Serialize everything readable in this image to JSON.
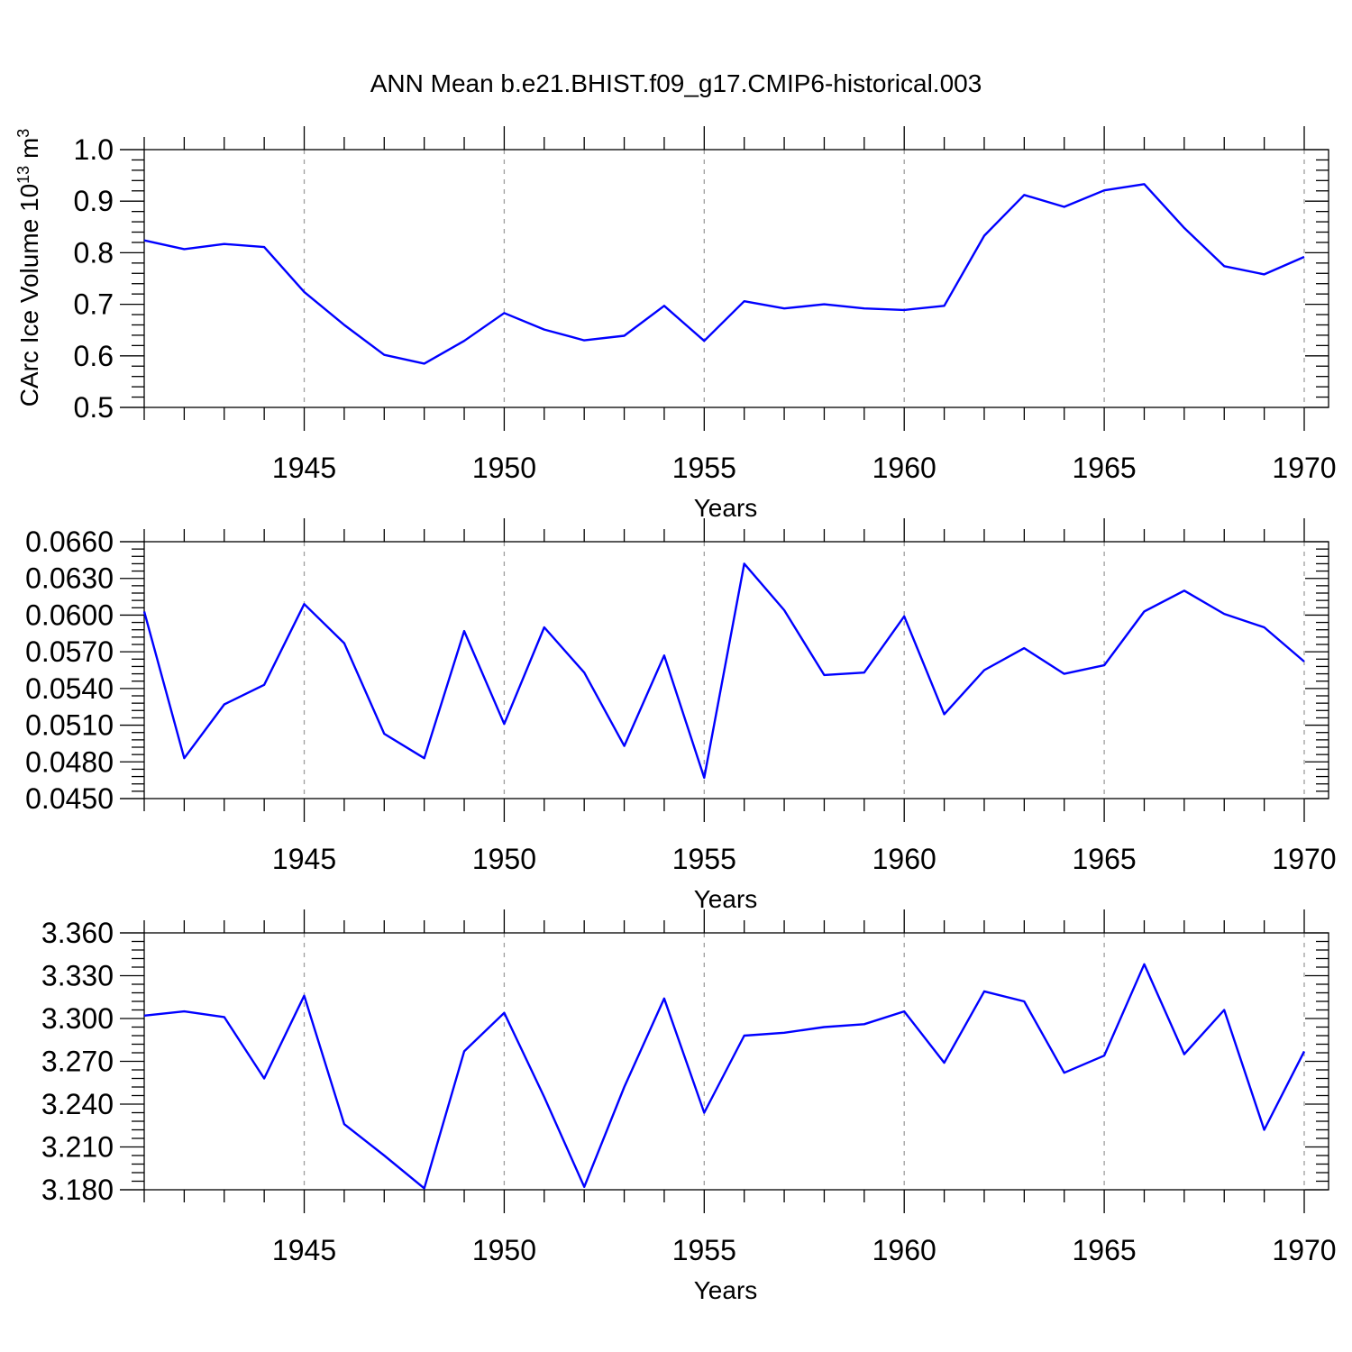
{
  "figure": {
    "title": "ANN Mean b.e21.BHIST.f09_g17.CMIP6-historical.003"
  },
  "style": {
    "line_color": "#0000ff",
    "axis_color": "#000000",
    "grid_color": "#9e9e9e",
    "background": "#ffffff"
  },
  "chart_data": [
    {
      "type": "line",
      "title": "ANN Mean b.e21.BHIST.f09_g17.CMIP6-historical.003",
      "xlabel": "Years",
      "ylabel": "CArc Ice Volume 10",
      "ylabel_sup1": "13",
      "ylabel_mid": " m",
      "ylabel_sup2": "3",
      "xlim": [
        1941,
        1970
      ],
      "ylim": [
        0.5,
        1.0
      ],
      "xticks": [
        1945,
        1950,
        1955,
        1960,
        1965,
        1970
      ],
      "yticks": [
        "0.5",
        "0.6",
        "0.7",
        "0.8",
        "0.9",
        "1.0"
      ],
      "grid": "vertical dashed at major x ticks",
      "series": [
        {
          "x": [
            1941,
            1942,
            1943,
            1944,
            1945,
            1946,
            1947,
            1948,
            1949,
            1950,
            1951,
            1952,
            1953,
            1954,
            1955,
            1956,
            1957,
            1958,
            1959,
            1960,
            1961,
            1962,
            1963,
            1964,
            1965,
            1966,
            1967,
            1968,
            1969,
            1970
          ],
          "values": [
            0.824,
            0.807,
            0.817,
            0.811,
            0.724,
            0.66,
            0.602,
            0.585,
            0.629,
            0.683,
            0.651,
            0.63,
            0.639,
            0.697,
            0.629,
            0.706,
            0.692,
            0.7,
            0.692,
            0.689,
            0.697,
            0.833,
            0.912,
            0.889,
            0.921,
            0.933,
            0.848,
            0.774,
            0.758,
            0.792
          ]
        }
      ]
    },
    {
      "type": "line",
      "xlabel": "Years",
      "ylabel": "",
      "xlim": [
        1941,
        1970
      ],
      "ylim": [
        0.045,
        0.066
      ],
      "xticks": [
        1945,
        1950,
        1955,
        1960,
        1965,
        1970
      ],
      "yticks": [
        "0.0450",
        "0.0480",
        "0.0510",
        "0.0540",
        "0.0570",
        "0.0600",
        "0.0630",
        "0.0660"
      ],
      "grid": "vertical dashed at major x ticks",
      "series": [
        {
          "x": [
            1941,
            1942,
            1943,
            1944,
            1945,
            1946,
            1947,
            1948,
            1949,
            1950,
            1951,
            1952,
            1953,
            1954,
            1955,
            1956,
            1957,
            1958,
            1959,
            1960,
            1961,
            1962,
            1963,
            1964,
            1965,
            1966,
            1967,
            1968,
            1969,
            1970
          ],
          "values": [
            0.0603,
            0.0483,
            0.0527,
            0.0543,
            0.0609,
            0.0577,
            0.0503,
            0.0483,
            0.0587,
            0.0511,
            0.059,
            0.0553,
            0.0493,
            0.0567,
            0.0467,
            0.0642,
            0.0604,
            0.0551,
            0.0553,
            0.0599,
            0.0519,
            0.0555,
            0.0573,
            0.0552,
            0.0559,
            0.0603,
            0.062,
            0.0601,
            0.059,
            0.0562
          ]
        }
      ]
    },
    {
      "type": "line",
      "xlabel": "Years",
      "ylabel": "",
      "xlim": [
        1941,
        1970
      ],
      "ylim": [
        3.18,
        3.36
      ],
      "xticks": [
        1945,
        1950,
        1955,
        1960,
        1965,
        1970
      ],
      "yticks": [
        "3.180",
        "3.210",
        "3.240",
        "3.270",
        "3.300",
        "3.330",
        "3.360"
      ],
      "grid": "vertical dashed at major x ticks",
      "series": [
        {
          "x": [
            1941,
            1942,
            1943,
            1944,
            1945,
            1946,
            1947,
            1948,
            1949,
            1950,
            1951,
            1952,
            1953,
            1954,
            1955,
            1956,
            1957,
            1958,
            1959,
            1960,
            1961,
            1962,
            1963,
            1964,
            1965,
            1966,
            1967,
            1968,
            1969,
            1970
          ],
          "values": [
            3.302,
            3.305,
            3.301,
            3.258,
            3.316,
            3.226,
            3.204,
            3.181,
            3.277,
            3.304,
            3.245,
            3.182,
            3.252,
            3.314,
            3.234,
            3.288,
            3.29,
            3.294,
            3.296,
            3.305,
            3.269,
            3.319,
            3.312,
            3.262,
            3.274,
            3.338,
            3.275,
            3.306,
            3.222,
            3.277
          ]
        }
      ]
    }
  ]
}
